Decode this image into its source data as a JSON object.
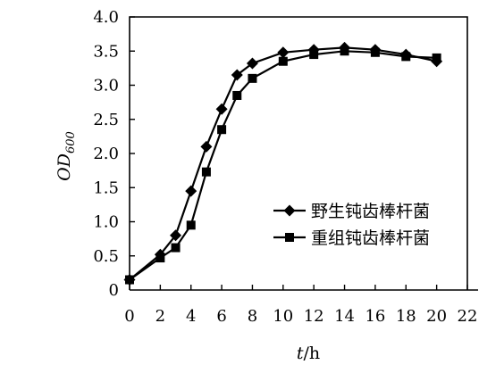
{
  "chart_data": {
    "type": "line",
    "xlabel_var": "t",
    "xlabel_unit": "/h",
    "ylabel_main": "OD",
    "ylabel_sub": "600",
    "xlim": [
      0,
      22
    ],
    "ylim": [
      0,
      4.0
    ],
    "x_ticks": [
      "0",
      "2",
      "4",
      "6",
      "8",
      "10",
      "12",
      "14",
      "16",
      "18",
      "20",
      "22"
    ],
    "y_ticks": [
      "0",
      "0.5",
      "1.0",
      "1.5",
      "2.0",
      "2.5",
      "3.0",
      "3.5",
      "4.0"
    ],
    "legend_placement": "center-right",
    "series": [
      {
        "name": "野生钝齿棒杆菌",
        "marker": "diamond",
        "x": [
          0,
          2,
          3,
          4,
          5,
          6,
          7,
          8,
          10,
          12,
          14,
          16,
          18,
          20
        ],
        "y": [
          0.15,
          0.52,
          0.8,
          1.45,
          2.1,
          2.65,
          3.15,
          3.32,
          3.48,
          3.52,
          3.55,
          3.52,
          3.45,
          3.35
        ]
      },
      {
        "name": "重组钝齿棒杆菌",
        "marker": "square",
        "x": [
          0,
          2,
          3,
          4,
          5,
          6,
          7,
          8,
          10,
          12,
          14,
          16,
          18,
          20
        ],
        "y": [
          0.15,
          0.47,
          0.62,
          0.95,
          1.73,
          2.35,
          2.85,
          3.1,
          3.35,
          3.45,
          3.5,
          3.48,
          3.42,
          3.4
        ]
      }
    ]
  }
}
